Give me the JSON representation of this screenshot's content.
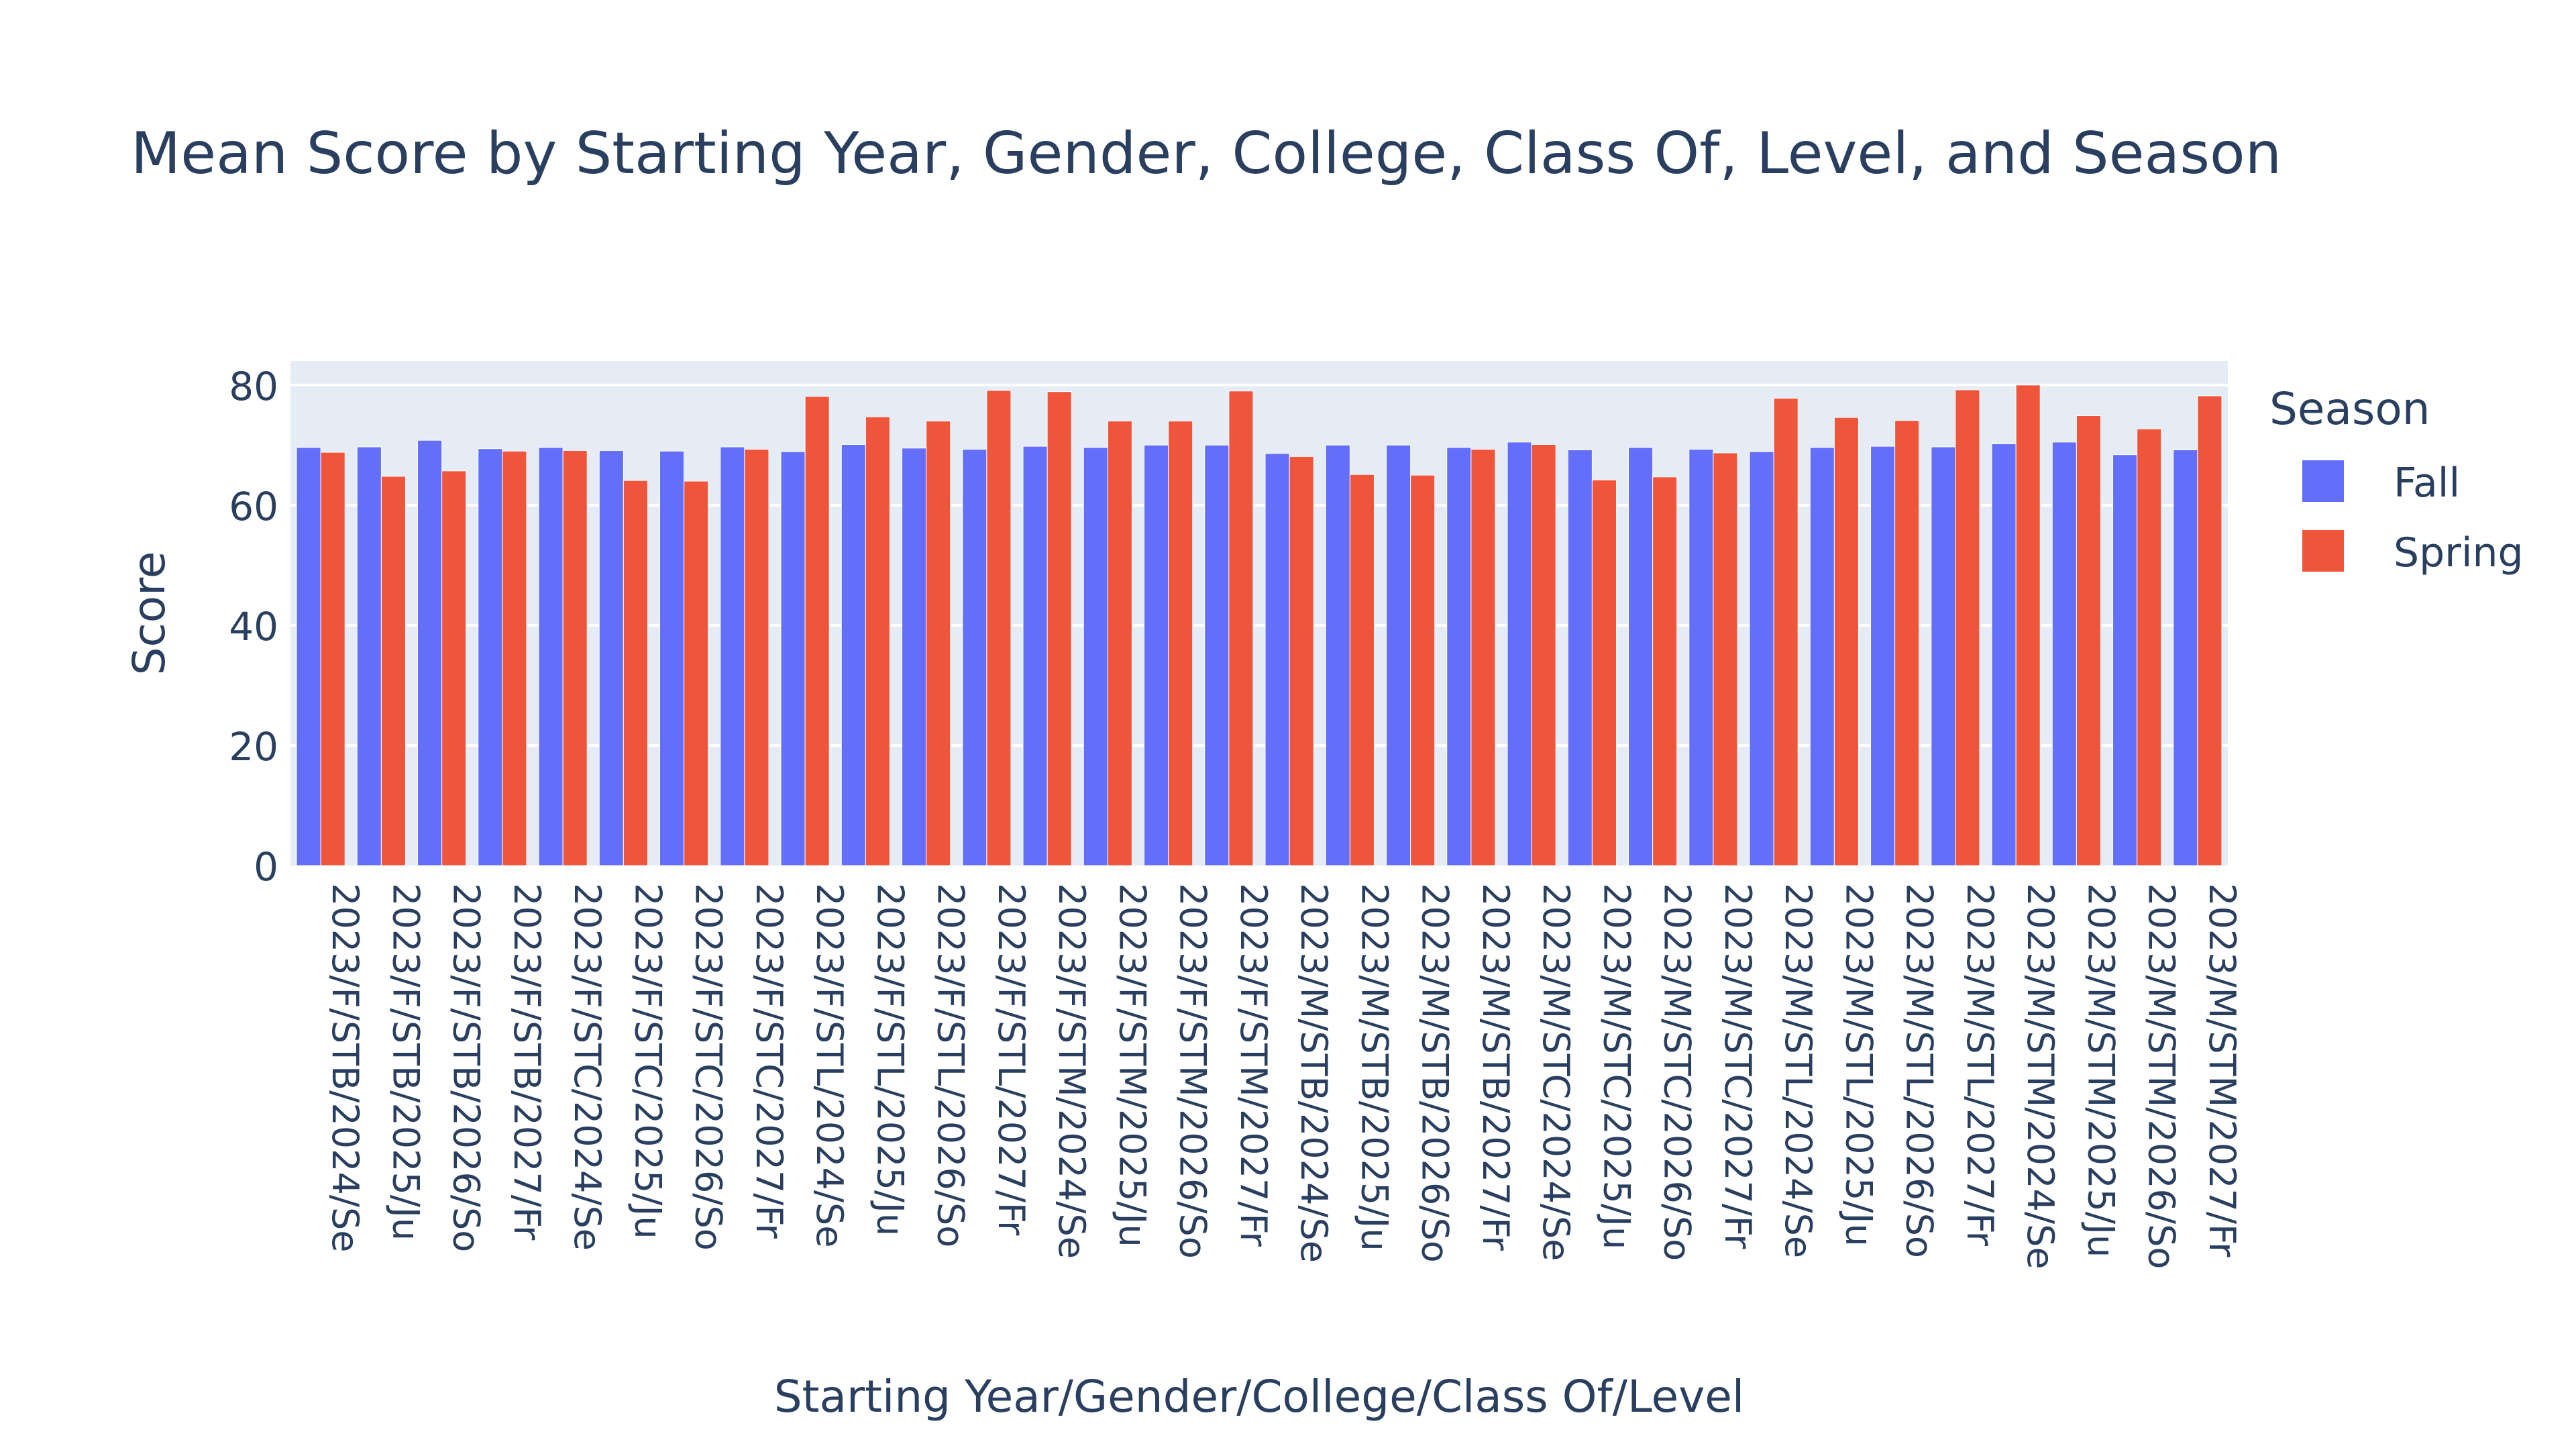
{
  "chart_data": {
    "type": "bar",
    "title": "Mean Score by Starting Year, Gender, College, Class Of, Level, and Season",
    "xlabel": "Starting Year/Gender/College/Class Of/Level",
    "ylabel": "Score",
    "ylim": [
      0,
      84
    ],
    "yticks": [
      0,
      20,
      40,
      60,
      80
    ],
    "legend_title": "Season",
    "legend_position": "right-top",
    "grid": true,
    "categories": [
      "2023/F/STB/2024/Se",
      "2023/F/STB/2025/Ju",
      "2023/F/STB/2026/So",
      "2023/F/STB/2027/Fr",
      "2023/F/STC/2024/Se",
      "2023/F/STC/2025/Ju",
      "2023/F/STC/2026/So",
      "2023/F/STC/2027/Fr",
      "2023/F/STL/2024/Se",
      "2023/F/STL/2025/Ju",
      "2023/F/STL/2026/So",
      "2023/F/STL/2027/Fr",
      "2023/F/STM/2024/Se",
      "2023/F/STM/2025/Ju",
      "2023/F/STM/2026/So",
      "2023/F/STM/2027/Fr",
      "2023/M/STB/2024/Se",
      "2023/M/STB/2025/Ju",
      "2023/M/STB/2026/So",
      "2023/M/STB/2027/Fr",
      "2023/M/STC/2024/Se",
      "2023/M/STC/2025/Ju",
      "2023/M/STC/2026/So",
      "2023/M/STC/2027/Fr",
      "2023/M/STL/2024/Se",
      "2023/M/STL/2025/Ju",
      "2023/M/STL/2026/So",
      "2023/M/STL/2027/Fr",
      "2023/M/STM/2024/Se",
      "2023/M/STM/2025/Ju",
      "2023/M/STM/2026/So",
      "2023/M/STM/2027/Fr"
    ],
    "series": [
      {
        "name": "Fall",
        "color": "#636efa",
        "values": [
          69.6,
          69.7,
          70.8,
          69.4,
          69.6,
          69.1,
          69.0,
          69.7,
          68.9,
          70.1,
          69.5,
          69.3,
          69.8,
          69.6,
          70.0,
          70.0,
          68.6,
          70.0,
          70.0,
          69.6,
          70.5,
          69.2,
          69.6,
          69.3,
          68.9,
          69.6,
          69.8,
          69.7,
          70.2,
          70.5,
          68.4,
          69.2
        ]
      },
      {
        "name": "Spring",
        "color": "#ef553b",
        "values": [
          68.8,
          64.8,
          65.7,
          69.0,
          69.1,
          64.1,
          64.0,
          69.3,
          78.1,
          74.7,
          74.0,
          79.1,
          78.9,
          74.0,
          74.0,
          79.0,
          68.1,
          65.1,
          65.0,
          69.3,
          70.1,
          64.2,
          64.7,
          68.7,
          77.8,
          74.6,
          74.1,
          79.2,
          80.0,
          74.9,
          72.7,
          78.2
        ]
      }
    ]
  }
}
